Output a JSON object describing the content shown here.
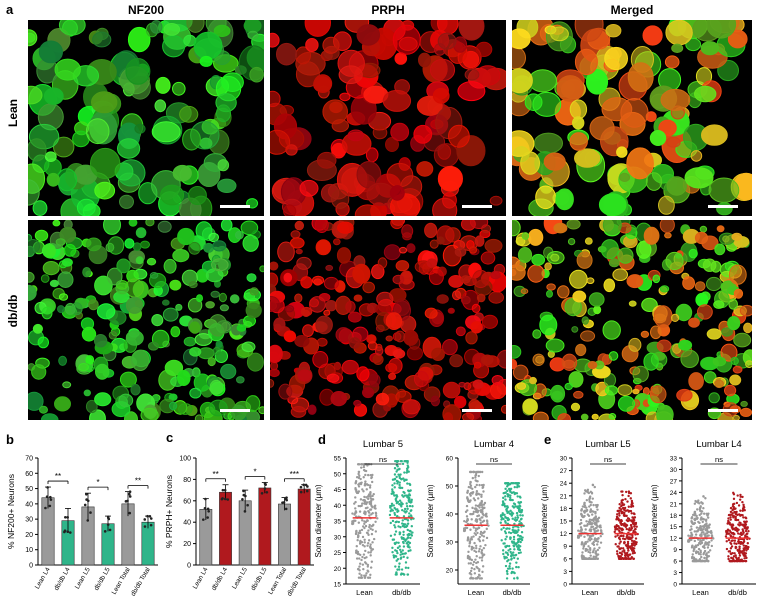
{
  "figure": {
    "panel_a": {
      "letter": "a",
      "columns": [
        "NF200",
        "PRPH",
        "Merged"
      ],
      "rows": [
        "Lean",
        "db/db"
      ]
    },
    "panel_b": {
      "letter": "b"
    },
    "panel_c": {
      "letter": "c"
    },
    "panel_d": {
      "letter": "d"
    },
    "panel_e": {
      "letter": "e"
    }
  },
  "colors": {
    "green": "#2dbf2d",
    "red": "#e02020",
    "gray": "#9a9a9a",
    "teal": "#2fb58a",
    "darkred": "#b0191e"
  },
  "chart_data": [
    {
      "id": "b",
      "type": "bar",
      "ylabel": "% NF200+ Neurons",
      "ylim": [
        0,
        70
      ],
      "yticks": [
        0,
        10,
        20,
        30,
        40,
        50,
        60,
        70
      ],
      "categories": [
        "Lean L4",
        "db/db L4",
        "Lean L5",
        "db/db L5",
        "Lean Total",
        "db/db Total"
      ],
      "values": [
        44,
        29,
        38,
        27,
        40,
        28
      ],
      "errors": [
        7,
        8,
        9,
        5,
        8,
        4
      ],
      "bar_colors": [
        "#9a9a9a",
        "#2fb58a",
        "#9a9a9a",
        "#2fb58a",
        "#9a9a9a",
        "#2fb58a"
      ],
      "significance": [
        {
          "pair": [
            0,
            1
          ],
          "label": "**"
        },
        {
          "pair": [
            2,
            3
          ],
          "label": "*"
        },
        {
          "pair": [
            4,
            5
          ],
          "label": "**"
        }
      ]
    },
    {
      "id": "c",
      "type": "bar",
      "ylabel": "% PRPH+ Neurons",
      "ylim": [
        0,
        100
      ],
      "yticks": [
        0,
        20,
        40,
        60,
        80,
        100
      ],
      "categories": [
        "Lean L4",
        "db/db L4",
        "Lean L5",
        "db/db L5",
        "Lean Total",
        "db/db Total"
      ],
      "values": [
        52,
        68,
        60,
        72,
        57,
        71
      ],
      "errors": [
        10,
        7,
        10,
        5,
        6,
        4
      ],
      "bar_colors": [
        "#9a9a9a",
        "#b0191e",
        "#9a9a9a",
        "#b0191e",
        "#9a9a9a",
        "#b0191e"
      ],
      "significance": [
        {
          "pair": [
            0,
            1
          ],
          "label": "**"
        },
        {
          "pair": [
            2,
            3
          ],
          "label": "*"
        },
        {
          "pair": [
            4,
            5
          ],
          "label": "***"
        }
      ]
    },
    {
      "id": "d1",
      "type": "scatter",
      "title": "Lumbar 5",
      "ylabel": "Soma diameter (μm)",
      "ylim": [
        15,
        55
      ],
      "yticks": [
        15,
        20,
        25,
        30,
        35,
        40,
        45,
        50,
        55
      ],
      "categories": [
        "Lean",
        "db/db"
      ],
      "medians": [
        36,
        36
      ],
      "ranges": [
        [
          17,
          53
        ],
        [
          18,
          54
        ]
      ],
      "colors": [
        "#9a9a9a",
        "#2fb58a"
      ],
      "significance": "ns"
    },
    {
      "id": "d2",
      "type": "scatter",
      "title": "Lumbar 4",
      "ylabel": "Soma diameter (μm)",
      "ylim": [
        15,
        60
      ],
      "yticks": [
        20,
        30,
        40,
        50,
        60
      ],
      "categories": [
        "Lean",
        "db/db"
      ],
      "medians": [
        36,
        36
      ],
      "ranges": [
        [
          17,
          55
        ],
        [
          17,
          51
        ]
      ],
      "colors": [
        "#9a9a9a",
        "#2fb58a"
      ],
      "significance": "ns"
    },
    {
      "id": "e1",
      "type": "scatter",
      "title": "Lumbar L5",
      "ylabel": "Soma diameter (μm)",
      "ylim": [
        0,
        30
      ],
      "yticks": [
        0,
        3,
        6,
        9,
        12,
        15,
        18,
        21,
        24,
        27,
        30
      ],
      "categories": [
        "Lean",
        "db/db"
      ],
      "medians": [
        12,
        12
      ],
      "ranges": [
        [
          6,
          24
        ],
        [
          6,
          22
        ]
      ],
      "colors": [
        "#9a9a9a",
        "#b0191e"
      ],
      "significance": "ns"
    },
    {
      "id": "e2",
      "type": "scatter",
      "title": "Lumbar L4",
      "ylabel": "Soma diameter (μm)",
      "ylim": [
        0,
        33
      ],
      "yticks": [
        0,
        3,
        6,
        9,
        12,
        15,
        18,
        21,
        24,
        27,
        30,
        33
      ],
      "categories": [
        "Lean",
        "db/db"
      ],
      "medians": [
        12,
        12
      ],
      "ranges": [
        [
          6,
          23
        ],
        [
          6,
          24
        ]
      ],
      "colors": [
        "#9a9a9a",
        "#b0191e"
      ],
      "significance": "ns"
    }
  ]
}
